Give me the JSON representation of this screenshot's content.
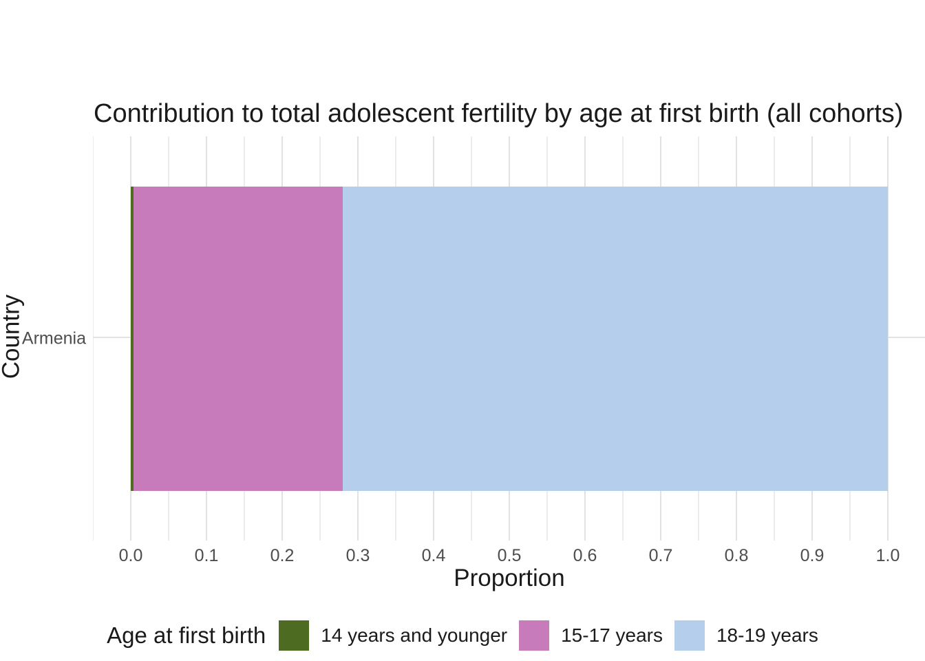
{
  "title": "Contribution to total adolescent fertility by age at first birth (all cohorts)",
  "colors": {
    "background": "#ffffff",
    "grid_major": "#e2e2e2",
    "grid_minor": "#ececec",
    "tick_text": "#4d4d4d",
    "text": "#1a1a1a",
    "green": "#4e6c21",
    "pink": "#c87bba",
    "blue": "#b5ceec"
  },
  "chart_data": {
    "type": "bar",
    "orientation": "horizontal",
    "stacked": true,
    "title": "Contribution to total adolescent fertility by age at first birth (all cohorts)",
    "xlabel": "Proportion",
    "ylabel": "Country",
    "categories": [
      "Armenia"
    ],
    "series": [
      {
        "name": "14 years and younger",
        "color": "#4e6c21",
        "values": [
          0.004
        ]
      },
      {
        "name": "15-17 years",
        "color": "#c87bba",
        "values": [
          0.276
        ]
      },
      {
        "name": "18-19 years",
        "color": "#b5ceec",
        "values": [
          0.72
        ]
      }
    ],
    "xlim": [
      -0.05,
      1.05
    ],
    "x_tick_values": [
      0.0,
      0.1,
      0.2,
      0.3,
      0.4,
      0.5,
      0.6,
      0.7,
      0.8,
      0.9,
      1.0
    ],
    "x_ticks": [
      "0.0",
      "0.1",
      "0.2",
      "0.3",
      "0.4",
      "0.5",
      "0.6",
      "0.7",
      "0.8",
      "0.9",
      "1.0"
    ],
    "x_minor_tick_values": [
      -0.05,
      0.05,
      0.15,
      0.25,
      0.35,
      0.45,
      0.55,
      0.65,
      0.75,
      0.85,
      0.95,
      1.05
    ],
    "grid": "vertical major+minor, horizontal major at category",
    "legend_title": "Age at first birth",
    "legend_position": "bottom"
  }
}
